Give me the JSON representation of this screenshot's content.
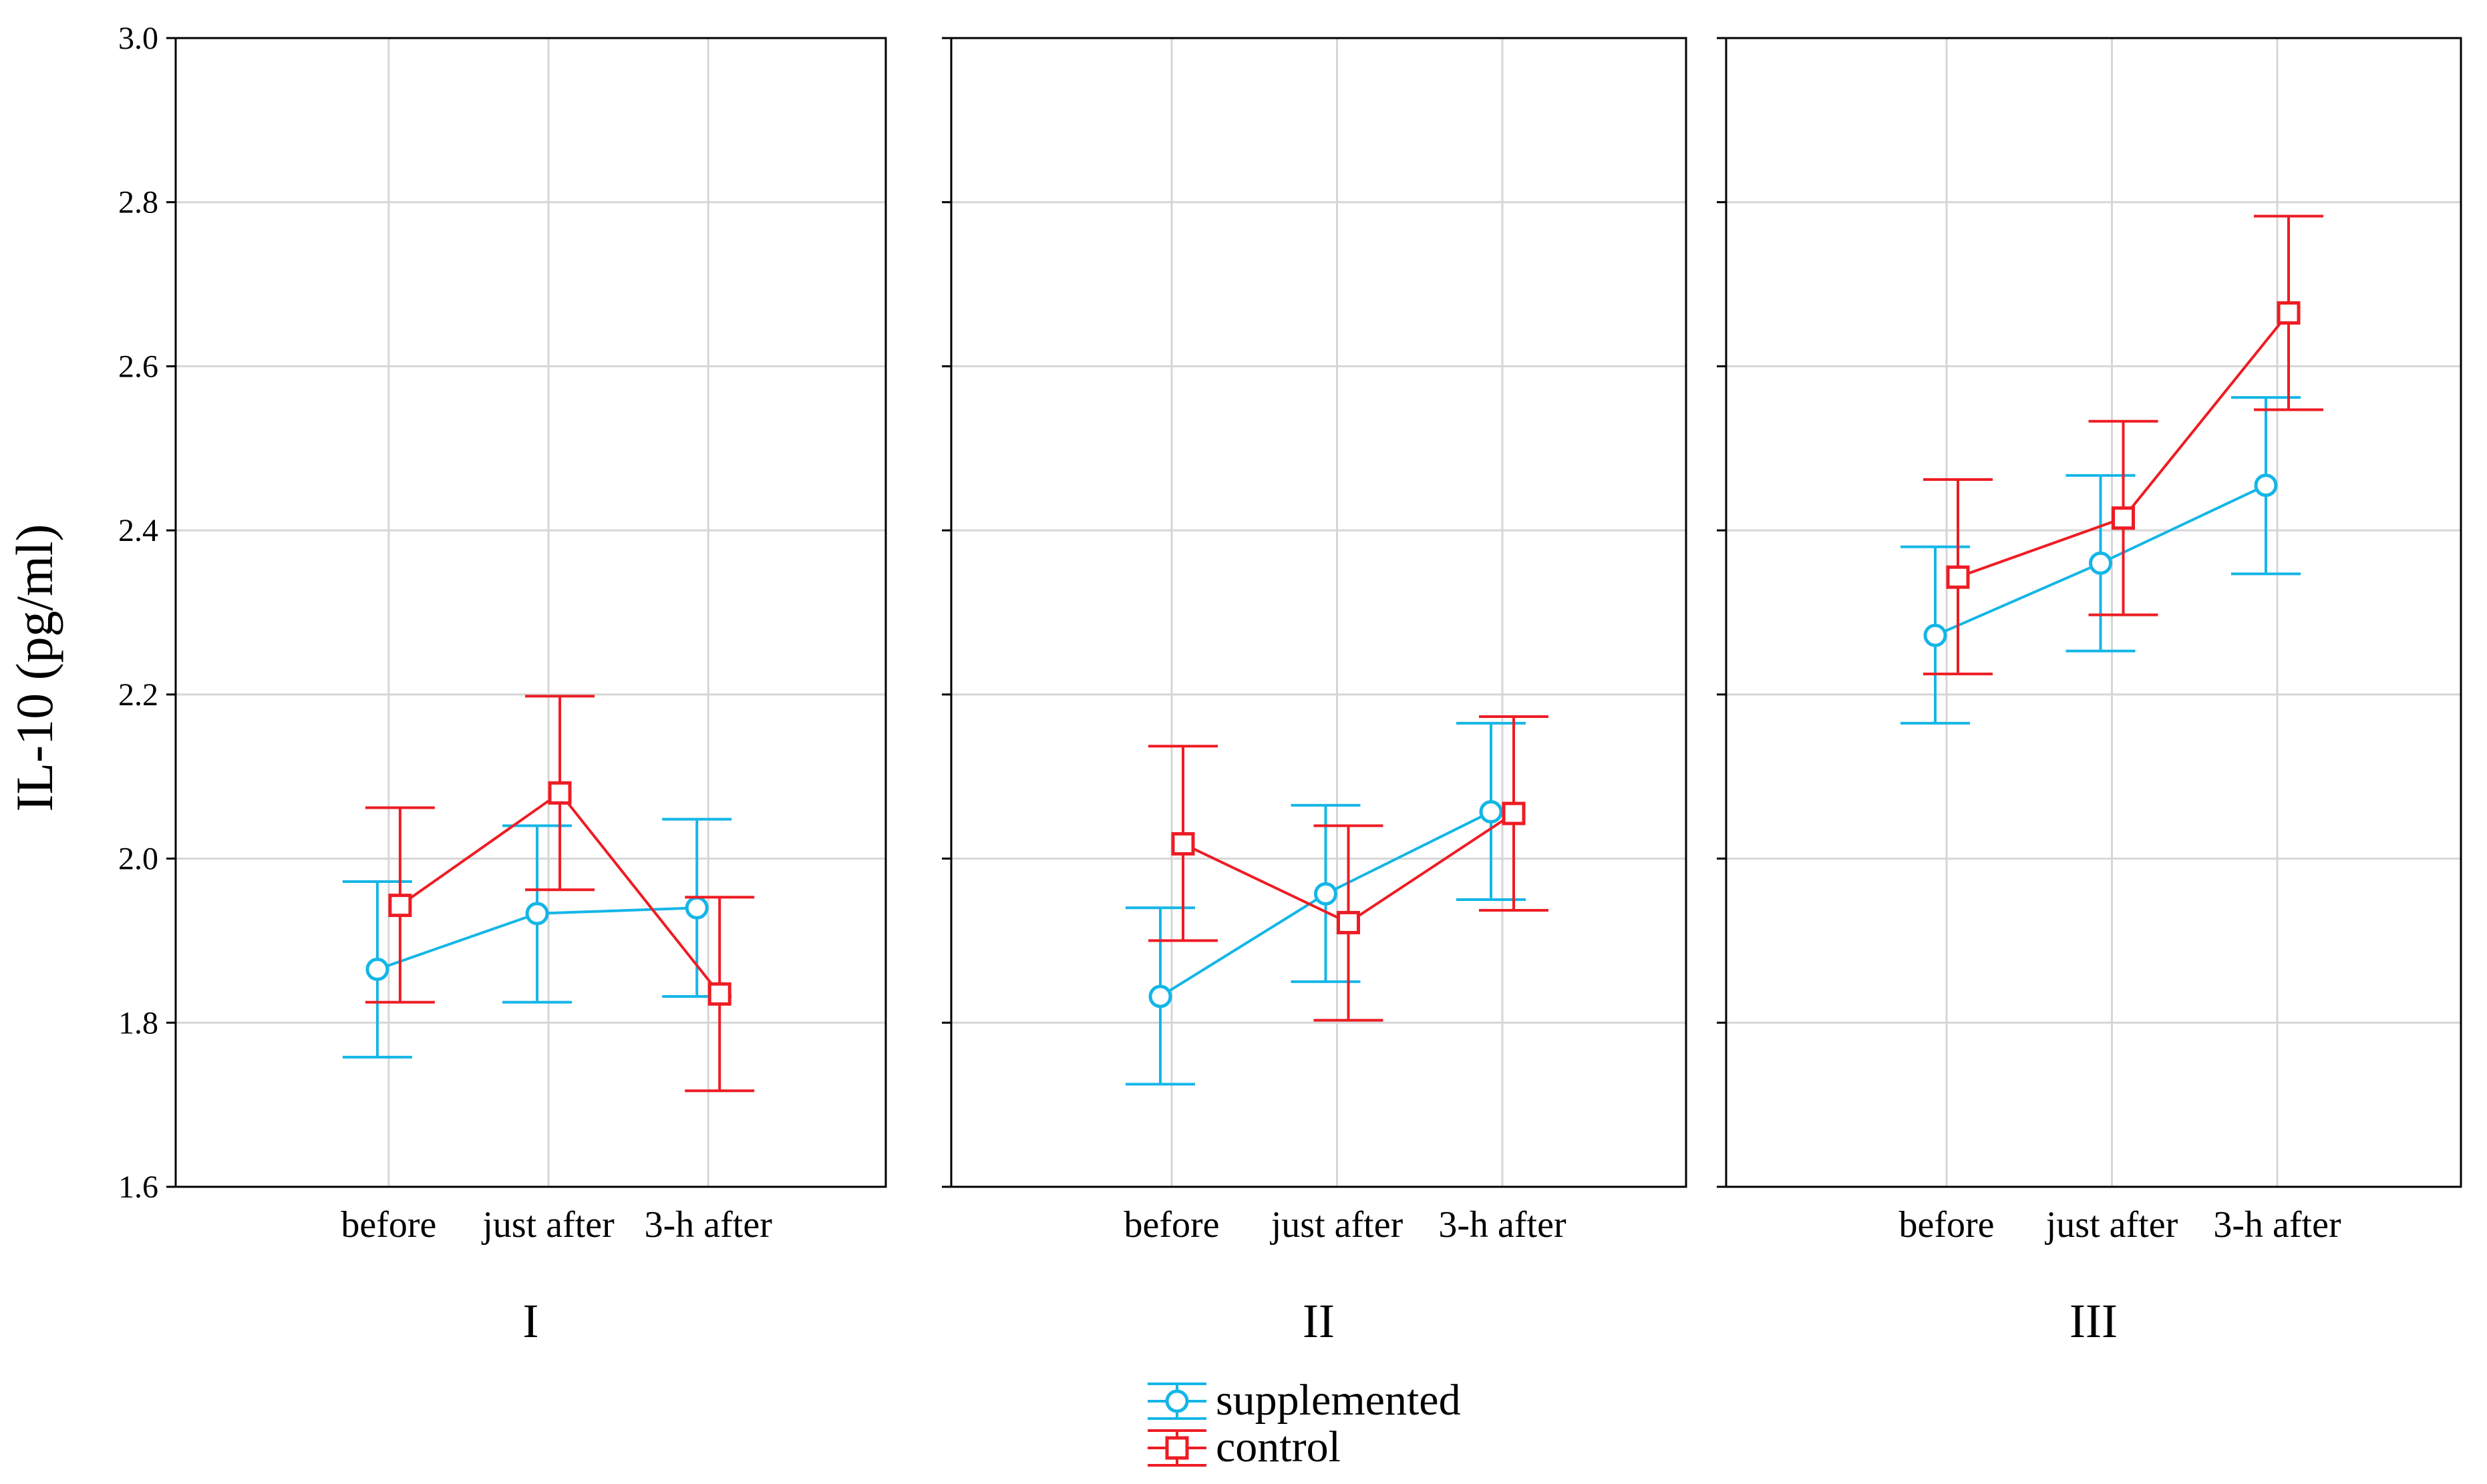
{
  "y_axis_label": "IL-10 (pg/ml)",
  "colors": {
    "supplemented": "#14b6e6",
    "control": "#ee1c24",
    "grid": "#d6d6d6",
    "frame": "#000000"
  },
  "legend": {
    "entries": [
      {
        "label": "supplemented",
        "marker": "circle"
      },
      {
        "label": "control",
        "marker": "square"
      }
    ]
  },
  "chart_data": {
    "type": "line",
    "ylabel": "IL-10 (pg/ml)",
    "ylim": [
      1.6,
      3.0
    ],
    "yticks": [
      "1.6",
      "1.8",
      "2.0",
      "2.2",
      "2.4",
      "2.6",
      "2.8",
      "3.0"
    ],
    "grid": true,
    "legend_position": "bottom-center",
    "categories": [
      "before",
      "just after",
      "3-h after"
    ],
    "panels": [
      {
        "label": "I",
        "series": [
          {
            "name": "supplemented",
            "values": [
              1.865,
              1.933,
              1.94
            ],
            "lower": [
              1.758,
              1.825,
              1.832
            ],
            "upper": [
              1.972,
              2.04,
              2.048
            ]
          },
          {
            "name": "control",
            "values": [
              1.943,
              2.08,
              1.835
            ],
            "lower": [
              1.825,
              1.962,
              1.717
            ],
            "upper": [
              2.062,
              2.198,
              1.953
            ]
          }
        ]
      },
      {
        "label": "II",
        "series": [
          {
            "name": "supplemented",
            "values": [
              1.832,
              1.957,
              2.057
            ],
            "lower": [
              1.725,
              1.85,
              1.95
            ],
            "upper": [
              1.94,
              2.065,
              2.165
            ]
          },
          {
            "name": "control",
            "values": [
              2.018,
              1.922,
              2.055
            ],
            "lower": [
              1.9,
              1.803,
              1.937
            ],
            "upper": [
              2.137,
              2.04,
              2.173
            ]
          }
        ]
      },
      {
        "label": "III",
        "series": [
          {
            "name": "supplemented",
            "values": [
              2.272,
              2.36,
              2.455
            ],
            "lower": [
              2.165,
              2.253,
              2.347
            ],
            "upper": [
              2.38,
              2.467,
              2.562
            ]
          },
          {
            "name": "control",
            "values": [
              2.343,
              2.415,
              2.665
            ],
            "lower": [
              2.225,
              2.297,
              2.547
            ],
            "upper": [
              2.462,
              2.533,
              2.783
            ]
          }
        ]
      }
    ]
  }
}
